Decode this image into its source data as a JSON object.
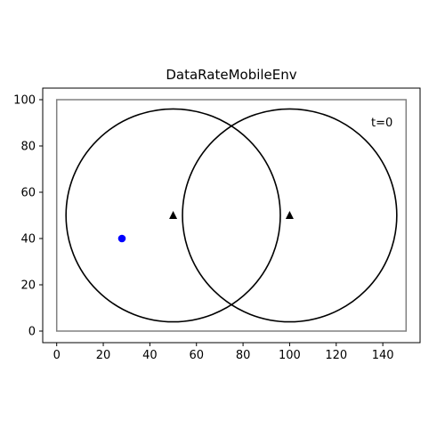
{
  "chart_data": {
    "type": "scatter",
    "title": "DataRateMobileEnv",
    "xlabel": "",
    "ylabel": "",
    "xlim": [
      -6,
      156
    ],
    "ylim": [
      -5,
      105
    ],
    "x_ticks": [
      0,
      20,
      40,
      60,
      80,
      100,
      120,
      140
    ],
    "y_ticks": [
      0,
      20,
      40,
      60,
      80,
      100
    ],
    "grid": false,
    "boundary": {
      "x": [
        0,
        150
      ],
      "y": [
        0,
        100
      ],
      "color": "#808080"
    },
    "base_stations": [
      {
        "x": 50,
        "y": 50,
        "range": 46,
        "marker": "triangle",
        "color": "#000000"
      },
      {
        "x": 100,
        "y": 50,
        "range": 46,
        "marker": "triangle",
        "color": "#000000"
      }
    ],
    "users": [
      {
        "x": 28,
        "y": 40,
        "marker": "circle",
        "color": "#0000ff"
      }
    ],
    "annotation": {
      "text": "t=0",
      "x": 135,
      "y": 90
    }
  }
}
